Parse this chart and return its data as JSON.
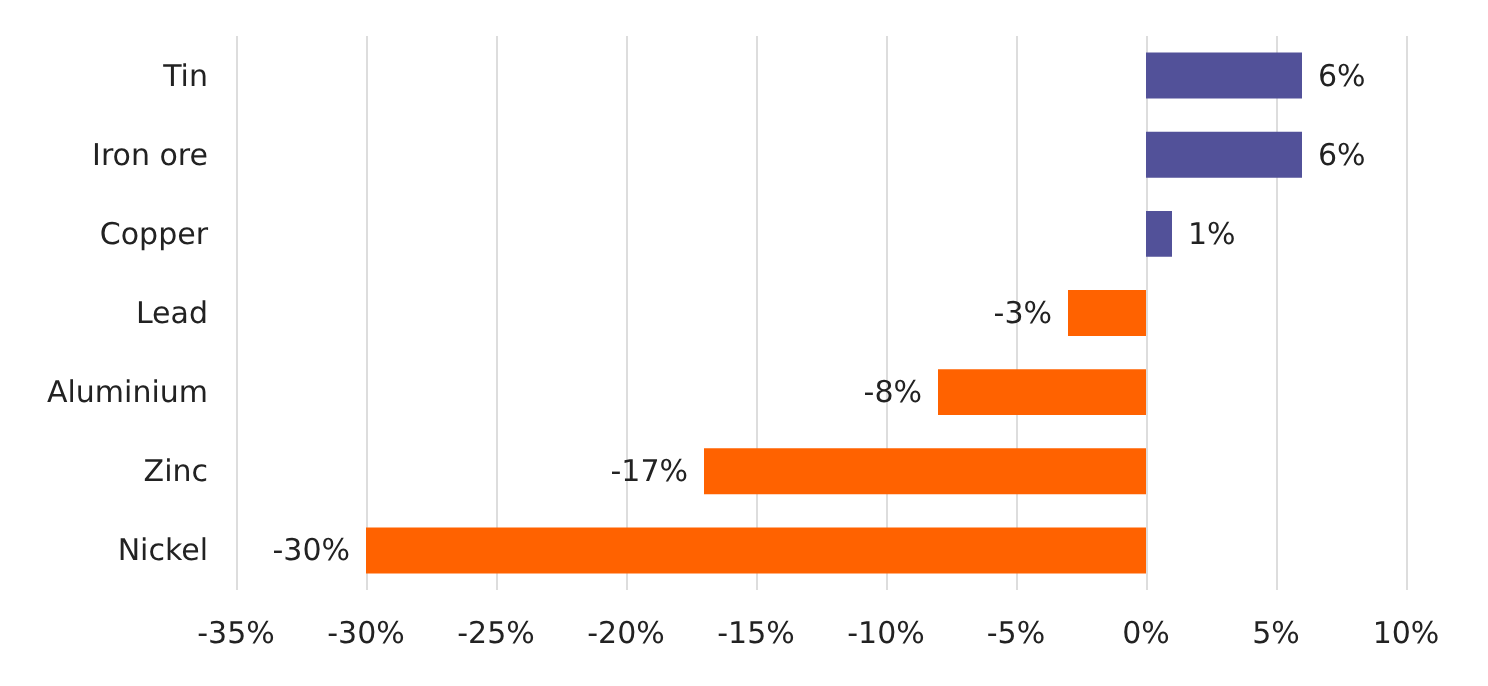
{
  "chart_data": {
    "type": "bar",
    "orientation": "horizontal",
    "categories": [
      "Tin",
      "Iron ore",
      "Copper",
      "Lead",
      "Aluminium",
      "Zinc",
      "Nickel"
    ],
    "values": [
      6,
      6,
      1,
      -3,
      -8,
      -17,
      -30
    ],
    "value_labels": [
      "6%",
      "6%",
      "1%",
      "-3%",
      "-8%",
      "-17%",
      "-30%"
    ],
    "colors": [
      "#525199",
      "#525199",
      "#525199",
      "#ff6200",
      "#ff6200",
      "#ff6200",
      "#ff6200"
    ],
    "xlim": [
      -35,
      10
    ],
    "xticks": [
      {
        "value": -35,
        "label": "-35%"
      },
      {
        "value": -30,
        "label": "-30%"
      },
      {
        "value": -25,
        "label": "-25%"
      },
      {
        "value": -20,
        "label": "-20%"
      },
      {
        "value": -15,
        "label": "-15%"
      },
      {
        "value": -10,
        "label": "-10%"
      },
      {
        "value": -5,
        "label": "-5%"
      },
      {
        "value": 0,
        "label": "0%"
      },
      {
        "value": 5,
        "label": "5%"
      },
      {
        "value": 10,
        "label": "10%"
      }
    ],
    "grid": "x"
  }
}
